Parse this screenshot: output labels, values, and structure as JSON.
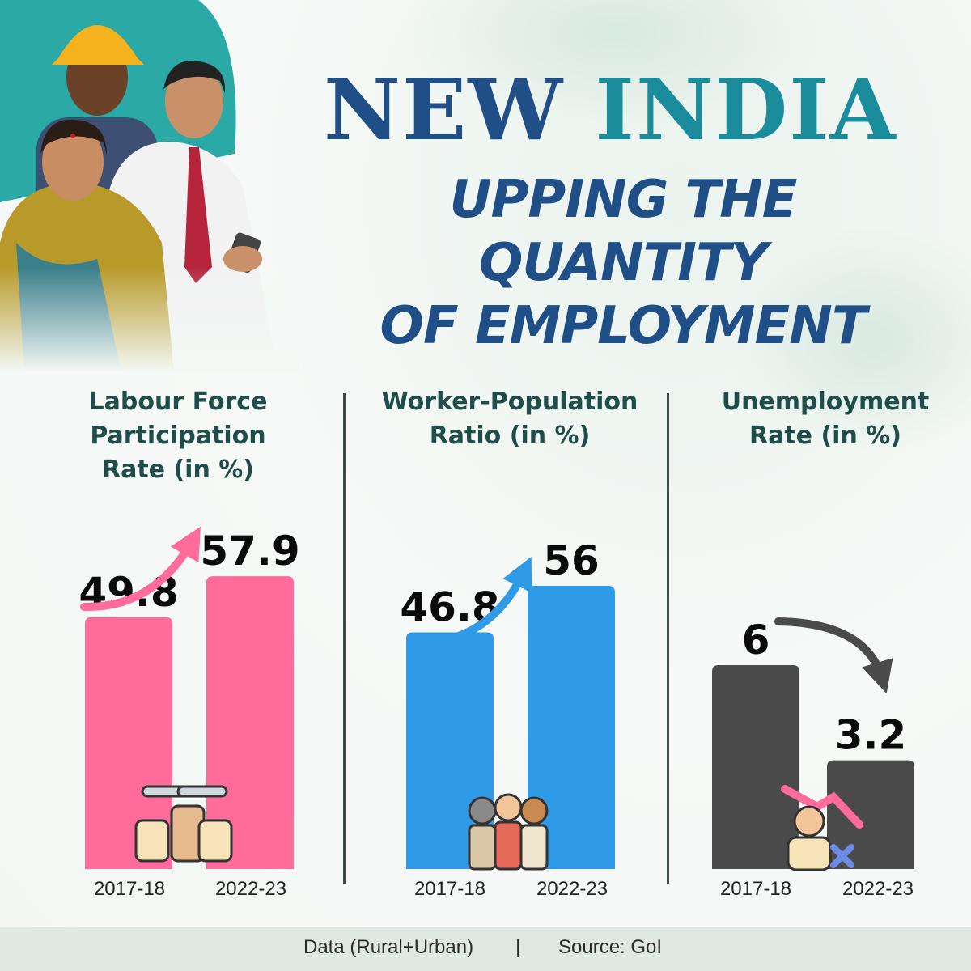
{
  "header": {
    "title_part1": "NEW",
    "title_part2": "INDIA",
    "subtitle_line1": "UPPING THE QUANTITY",
    "subtitle_line2": "OF EMPLOYMENT"
  },
  "colors": {
    "lfpr": "#ff6b9b",
    "wpr": "#2f9be6",
    "ur": "#4a4a4a",
    "title_dark": "#1f4f86",
    "title_teal": "#1a8c9c",
    "panel_title": "#1e4d4a"
  },
  "chart_data": [
    {
      "type": "bar",
      "title_line1": "Labour Force",
      "title_line2": "Participation",
      "title_line3": "Rate (in %)",
      "categories": [
        "2017-18",
        "2022-23"
      ],
      "values": [
        49.8,
        57.9
      ],
      "labels": [
        "49.8",
        "57.9"
      ],
      "trend": "up",
      "icon": "raised-fists-tools-icon"
    },
    {
      "type": "bar",
      "title_line1": "Worker-Population",
      "title_line2": "Ratio (in %)",
      "categories": [
        "2017-18",
        "2022-23"
      ],
      "values": [
        46.8,
        56
      ],
      "labels": [
        "46.8",
        "56"
      ],
      "trend": "up",
      "icon": "workers-group-icon"
    },
    {
      "type": "bar",
      "title_line1": "Unemployment",
      "title_line2": "Rate (in %)",
      "categories": [
        "2017-18",
        "2022-23"
      ],
      "values": [
        6,
        3.2
      ],
      "labels": [
        "6",
        "3.2"
      ],
      "trend": "down",
      "icon": "unemployed-person-icon"
    }
  ],
  "footer": {
    "data_note": "Data (Rural+Urban)",
    "separator": "|",
    "source": "Source: GoI"
  }
}
